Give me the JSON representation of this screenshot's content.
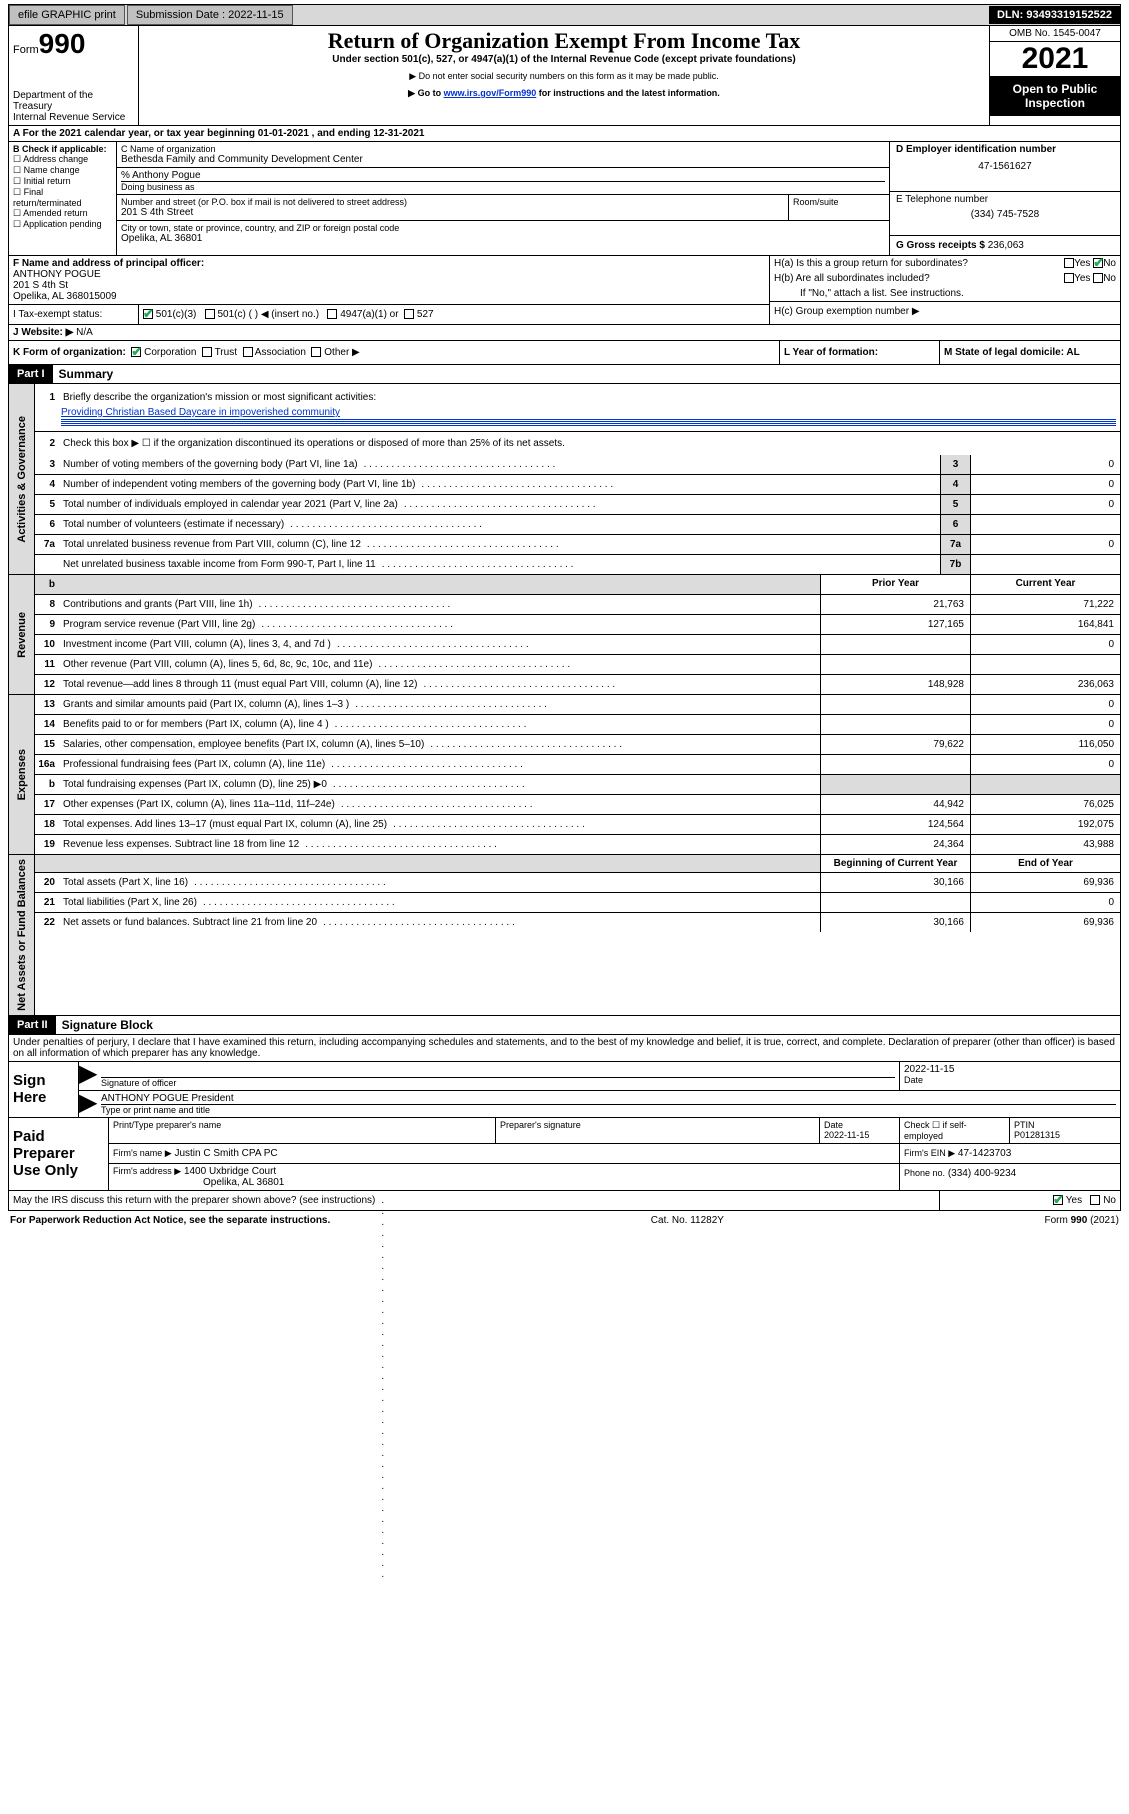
{
  "topbar": {
    "efile": "efile GRAPHIC print",
    "submission_label": "Submission Date :",
    "submission_date": "2022-11-15",
    "dln_label": "DLN:",
    "dln": "93493319152522"
  },
  "header": {
    "form_label": "Form",
    "form_number": "990",
    "dept": "Department of the Treasury",
    "irs": "Internal Revenue Service",
    "title": "Return of Organization Exempt From Income Tax",
    "subtitle": "Under section 501(c), 527, or 4947(a)(1) of the Internal Revenue Code (except private foundations)",
    "note1": "▶ Do not enter social security numbers on this form as it may be made public.",
    "note2_prefix": "▶ Go to ",
    "note2_link": "www.irs.gov/Form990",
    "note2_suffix": " for instructions and the latest information.",
    "omb": "OMB No. 1545-0047",
    "year": "2021",
    "otp": "Open to Public Inspection"
  },
  "sectionA": {
    "line": "A For the 2021 calendar year, or tax year beginning 01-01-2021    , and ending 12-31-2021"
  },
  "sectionB": {
    "label": "B Check if applicable:",
    "items": [
      "Address change",
      "Name change",
      "Initial return",
      "Final return/terminated",
      "Amended return",
      "Application pending"
    ]
  },
  "sectionC": {
    "name_label": "C Name of organization",
    "name": "Bethesda Family and Community Development Center",
    "pct_label": "% Anthony Pogue",
    "dba_label": "Doing business as",
    "street_label": "Number and street (or P.O. box if mail is not delivered to street address)",
    "street": "201 S 4th Street",
    "room_label": "Room/suite",
    "city_label": "City or town, state or province, country, and ZIP or foreign postal code",
    "city": "Opelika, AL  36801"
  },
  "sectionD": {
    "label": "D Employer identification number",
    "value": "47-1561627"
  },
  "sectionE": {
    "label": "E Telephone number",
    "value": "(334) 745-7528"
  },
  "sectionG": {
    "label": "G Gross receipts $",
    "value": "236,063"
  },
  "sectionF": {
    "label": "F Name and address of principal officer:",
    "name": "ANTHONY POGUE",
    "addr1": "201 S 4th St",
    "addr2": "Opelika, AL  368015009"
  },
  "sectionH": {
    "a_label": "H(a)  Is this a group return for subordinates?",
    "b_label": "H(b)  Are all subordinates included?",
    "b_note": "If \"No,\" attach a list. See instructions.",
    "c_label": "H(c)  Group exemption number ▶",
    "yes": "Yes",
    "no": "No"
  },
  "sectionI": {
    "label": "I   Tax-exempt status:",
    "opt1": "501(c)(3)",
    "opt2": "501(c) (   ) ◀ (insert no.)",
    "opt3": "4947(a)(1) or",
    "opt4": "527"
  },
  "sectionJ": {
    "label": "J   Website: ▶",
    "value": "N/A"
  },
  "sectionK": {
    "label": "K Form of organization:",
    "opts": [
      "Corporation",
      "Trust",
      "Association",
      "Other ▶"
    ]
  },
  "sectionL": {
    "label": "L Year of formation:"
  },
  "sectionM": {
    "label": "M State of legal domicile: AL"
  },
  "part1": {
    "header": "Part I",
    "title": "Summary",
    "line1_label": "1",
    "line1_text": "Briefly describe the organization's mission or most significant activities:",
    "line1_value": "Providing Christian Based Daycare in impoverished community",
    "line2": "Check this box ▶ ☐  if the organization discontinued its operations or disposed of more than 25% of its net assets.",
    "lines_gov": [
      {
        "n": "3",
        "t": "Number of voting members of the governing body (Part VI, line 1a)",
        "box": "3",
        "v": "0"
      },
      {
        "n": "4",
        "t": "Number of independent voting members of the governing body (Part VI, line 1b)",
        "box": "4",
        "v": "0"
      },
      {
        "n": "5",
        "t": "Total number of individuals employed in calendar year 2021 (Part V, line 2a)",
        "box": "5",
        "v": "0"
      },
      {
        "n": "6",
        "t": "Total number of volunteers (estimate if necessary)",
        "box": "6",
        "v": ""
      },
      {
        "n": "7a",
        "t": "Total unrelated business revenue from Part VIII, column (C), line 12",
        "box": "7a",
        "v": "0"
      },
      {
        "n": "",
        "t": "Net unrelated business taxable income from Form 990-T, Part I, line 11",
        "box": "7b",
        "v": ""
      }
    ],
    "col_headers": {
      "blank": "b",
      "prior": "Prior Year",
      "current": "Current Year"
    },
    "lines_rev": [
      {
        "n": "8",
        "t": "Contributions and grants (Part VIII, line 1h)",
        "p": "21,763",
        "c": "71,222"
      },
      {
        "n": "9",
        "t": "Program service revenue (Part VIII, line 2g)",
        "p": "127,165",
        "c": "164,841"
      },
      {
        "n": "10",
        "t": "Investment income (Part VIII, column (A), lines 3, 4, and 7d )",
        "p": "",
        "c": "0"
      },
      {
        "n": "11",
        "t": "Other revenue (Part VIII, column (A), lines 5, 6d, 8c, 9c, 10c, and 11e)",
        "p": "",
        "c": ""
      },
      {
        "n": "12",
        "t": "Total revenue—add lines 8 through 11 (must equal Part VIII, column (A), line 12)",
        "p": "148,928",
        "c": "236,063"
      }
    ],
    "lines_exp": [
      {
        "n": "13",
        "t": "Grants and similar amounts paid (Part IX, column (A), lines 1–3 )",
        "p": "",
        "c": "0"
      },
      {
        "n": "14",
        "t": "Benefits paid to or for members (Part IX, column (A), line 4 )",
        "p": "",
        "c": "0"
      },
      {
        "n": "15",
        "t": "Salaries, other compensation, employee benefits (Part IX, column (A), lines 5–10)",
        "p": "79,622",
        "c": "116,050"
      },
      {
        "n": "16a",
        "t": "Professional fundraising fees (Part IX, column (A), line 11e)",
        "p": "",
        "c": "0"
      },
      {
        "n": "b",
        "t": "Total fundraising expenses (Part IX, column (D), line 25) ▶0",
        "p": "shaded",
        "c": "shaded"
      },
      {
        "n": "17",
        "t": "Other expenses (Part IX, column (A), lines 11a–11d, 11f–24e)",
        "p": "44,942",
        "c": "76,025"
      },
      {
        "n": "18",
        "t": "Total expenses. Add lines 13–17 (must equal Part IX, column (A), line 25)",
        "p": "124,564",
        "c": "192,075"
      },
      {
        "n": "19",
        "t": "Revenue less expenses. Subtract line 18 from line 12",
        "p": "24,364",
        "c": "43,988"
      }
    ],
    "col_headers2": {
      "prior": "Beginning of Current Year",
      "current": "End of Year"
    },
    "lines_net": [
      {
        "n": "20",
        "t": "Total assets (Part X, line 16)",
        "p": "30,166",
        "c": "69,936"
      },
      {
        "n": "21",
        "t": "Total liabilities (Part X, line 26)",
        "p": "",
        "c": "0"
      },
      {
        "n": "22",
        "t": "Net assets or fund balances. Subtract line 21 from line 20",
        "p": "30,166",
        "c": "69,936"
      }
    ],
    "side_labels": {
      "gov": "Activities & Governance",
      "rev": "Revenue",
      "exp": "Expenses",
      "net": "Net Assets or Fund Balances"
    }
  },
  "part2": {
    "header": "Part II",
    "title": "Signature Block",
    "declaration": "Under penalties of perjury, I declare that I have examined this return, including accompanying schedules and statements, and to the best of my knowledge and belief, it is true, correct, and complete. Declaration of preparer (other than officer) is based on all information of which preparer has any knowledge.",
    "sign_here": "Sign Here",
    "sig_officer": "Signature of officer",
    "date_label": "Date",
    "sig_date": "2022-11-15",
    "officer_name": "ANTHONY POGUE  President",
    "officer_label": "Type or print name and title",
    "paid_preparer": "Paid Preparer Use Only",
    "prep_name_label": "Print/Type preparer's name",
    "prep_sig_label": "Preparer's signature",
    "prep_date_label": "Date",
    "prep_date": "2022-11-15",
    "check_label": "Check ☐ if self-employed",
    "ptin_label": "PTIN",
    "ptin": "P01281315",
    "firm_name_label": "Firm's name      ▶",
    "firm_name": "Justin C Smith CPA PC",
    "firm_ein_label": "Firm's EIN ▶",
    "firm_ein": "47-1423703",
    "firm_addr_label": "Firm's address ▶",
    "firm_addr1": "1400 Uxbridge Court",
    "firm_addr2": "Opelika, AL  36801",
    "phone_label": "Phone no.",
    "phone": "(334) 400-9234",
    "discuss": "May the IRS discuss this return with the preparer shown above? (see instructions)",
    "yes": "Yes",
    "no": "No"
  },
  "footer": {
    "left": "For Paperwork Reduction Act Notice, see the separate instructions.",
    "center": "Cat. No. 11282Y",
    "right": "Form 990 (2021)"
  }
}
